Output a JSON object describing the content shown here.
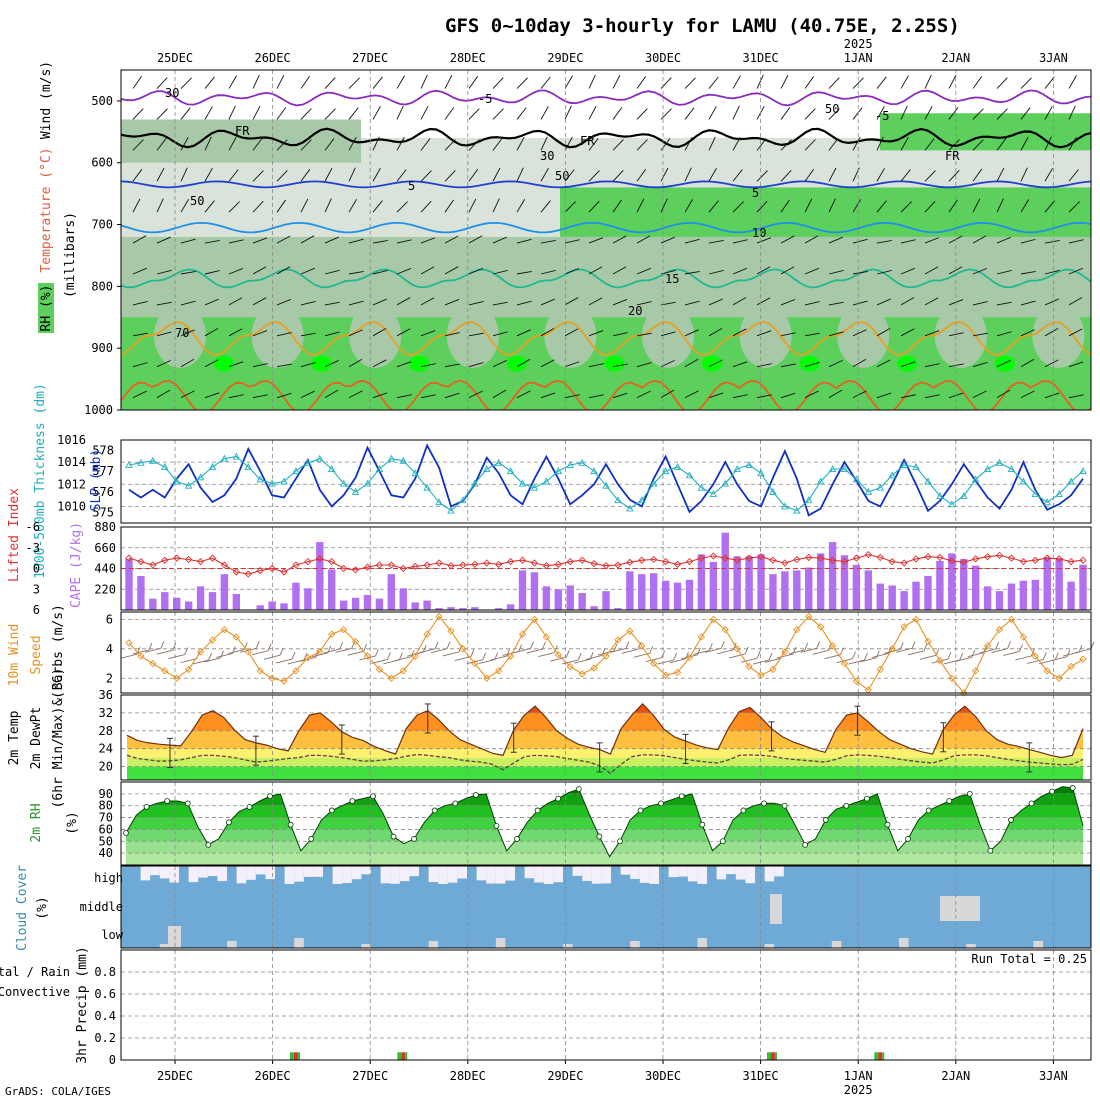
{
  "header": {
    "title": "GFS 0~10day 3-hourly for LAMU (40.75E, 2.25S)",
    "footer": "GrADS: COLA/IGES"
  },
  "colors": {
    "rh_light": "#d9e3d9",
    "rh_mid": "#a8c9a8",
    "rh_green": "#5ccf5c",
    "rh_bright": "#00ff00",
    "t_minus5": "#8a2bbf",
    "t_fr": "#000000",
    "t_5": "#2040d0",
    "t_10": "#1e90e8",
    "t_15": "#20b890",
    "t_20": "#e8a020",
    "t_25": "#e86020",
    "slp": "#1030c0",
    "thick": "#20b0c0",
    "li": "#e03030",
    "cape": "#b070f0",
    "wind_speed": "#e89020",
    "wind_barb": "#8a7060",
    "cloud": "#6fa9d6",
    "cloud_clear": "#f4f0fa"
  },
  "chart_data": [
    {
      "type": "heatmap",
      "name": "upper-air",
      "x_labels": [
        "25DEC",
        "26DEC",
        "27DEC",
        "28DEC",
        "29DEC",
        "30DEC",
        "31DEC",
        "1JAN",
        "2JAN",
        "3JAN"
      ],
      "year_label": "2025",
      "ylabel": "(millibars)",
      "ylabel_parts": [
        "RH (%)",
        "Temperature (°C)",
        "Wind (m/s)"
      ],
      "ylim": [
        1000,
        450
      ],
      "yticks": [
        500,
        600,
        700,
        800,
        900,
        1000
      ],
      "contour_labels": [
        "-5",
        "FR",
        "5",
        "10",
        "15",
        "20",
        "30",
        "50",
        "70"
      ]
    },
    {
      "type": "line",
      "name": "slp-thickness",
      "ylabel_left": "1000-500mb Thickness (dm)",
      "ylabel_right": "SLP (mb)",
      "left_ticks": [
        575,
        576,
        577,
        578
      ],
      "right_ticks": [
        1010,
        1012,
        1014,
        1016
      ],
      "left_range": [
        574.5,
        578.5
      ],
      "right_range": [
        1008.5,
        1016
      ],
      "series": [
        {
          "name": "SLP",
          "values": [
            1011.5,
            1010.8,
            1011.5,
            1010.8,
            1012.5,
            1013.8,
            1011.7,
            1010.4,
            1011.0,
            1012.5,
            1015.2,
            1013.2,
            1011.0,
            1010.8,
            1012.5,
            1014.2,
            1011.5,
            1010.0,
            1011.0,
            1012.6,
            1015.3,
            1013.2,
            1011.0,
            1010.8,
            1012.5,
            1015.5,
            1013.5,
            1010.0,
            1010.5,
            1012.0,
            1014.4,
            1013.0,
            1011.0,
            1010.2,
            1012.5,
            1014.5,
            1012.5,
            1010.2,
            1011.0,
            1012.0,
            1013.8,
            1012.0,
            1010.6,
            1010.0,
            1012.5,
            1014.5,
            1012.0,
            1009.5,
            1010.5,
            1012.0,
            1014.0,
            1012.0,
            1010.5,
            1010.0,
            1012.6,
            1015.0,
            1012.5,
            1009.2,
            1009.8,
            1012.0,
            1014.0,
            1012.3,
            1010.5,
            1010.0,
            1012.0,
            1014.2,
            1012.0,
            1009.6,
            1010.5,
            1012.0,
            1013.8,
            1012.3,
            1010.8,
            1009.8,
            1011.5,
            1014.0,
            1011.5,
            1009.7,
            1010.2,
            1011.0,
            1012.5
          ]
        },
        {
          "name": "Thickness",
          "values": [
            577.3,
            577.4,
            577.5,
            577.2,
            576.5,
            576.3,
            576.7,
            577.2,
            577.6,
            577.7,
            577.2,
            576.6,
            576.4,
            576.5,
            577.0,
            577.4,
            577.6,
            577.1,
            576.4,
            576.0,
            576.4,
            577.1,
            577.6,
            577.5,
            576.9,
            576.2,
            575.5,
            575.1,
            575.6,
            576.4,
            577.1,
            577.4,
            577.0,
            576.4,
            576.2,
            576.5,
            577.0,
            577.3,
            577.4,
            577.0,
            576.3,
            575.6,
            575.2,
            575.6,
            576.4,
            577.0,
            577.2,
            576.8,
            576.2,
            575.9,
            576.4,
            577.1,
            577.3,
            576.9,
            576.0,
            575.3,
            575.1,
            575.6,
            576.5,
            577.1,
            577.1,
            576.6,
            576.0,
            576.2,
            576.8,
            577.3,
            577.2,
            576.5,
            575.8,
            575.4,
            575.8,
            576.6,
            577.1,
            577.4,
            577.1,
            576.5,
            575.9,
            575.5,
            575.9,
            576.5,
            577.0
          ]
        }
      ]
    },
    {
      "type": "bar",
      "name": "cape-li",
      "ylabel_left": "Lifted Index",
      "ylabel_right": "CAPE (J/kg)",
      "left_ticks": [
        "6",
        "3",
        "0",
        "-3",
        "-6"
      ],
      "right_ticks": [
        220,
        440,
        660,
        880
      ],
      "cape_range": [
        0,
        880
      ],
      "li_range": [
        6,
        -6
      ],
      "series": [
        {
          "name": "CAPE",
          "values": [
            540,
            360,
            120,
            190,
            130,
            90,
            250,
            190,
            380,
            170,
            0,
            50,
            90,
            70,
            290,
            230,
            720,
            430,
            100,
            130,
            160,
            120,
            380,
            230,
            80,
            100,
            20,
            30,
            20,
            30,
            0,
            20,
            60,
            420,
            400,
            250,
            220,
            260,
            180,
            40,
            200,
            20,
            410,
            380,
            390,
            310,
            290,
            320,
            590,
            510,
            820,
            570,
            570,
            590,
            380,
            410,
            420,
            450,
            600,
            720,
            580,
            480,
            420,
            280,
            260,
            200,
            300,
            360,
            520,
            600,
            540,
            470,
            250,
            200,
            280,
            310,
            320,
            560,
            550,
            300,
            480
          ]
        },
        {
          "name": "Lifted Index",
          "values": [
            -1.5,
            -1.0,
            -0.5,
            -1.2,
            -1.5,
            -1.3,
            -1.0,
            -1.5,
            -0.5,
            0.5,
            0.8,
            0.3,
            0.0,
            0.5,
            -0.5,
            -1.0,
            -1.4,
            -1.0,
            0.0,
            0.2,
            -0.2,
            -0.5,
            -0.5,
            0.0,
            -0.3,
            -0.5,
            -0.8,
            -0.4,
            -0.5,
            -0.6,
            -0.8,
            -0.6,
            -1.0,
            -1.2,
            -0.8,
            -0.4,
            -0.6,
            -1.0,
            -1.2,
            -0.7,
            -0.4,
            -0.5,
            -0.9,
            -1.2,
            -1.3,
            -1.0,
            -0.6,
            -1.0,
            -1.5,
            -1.8,
            -1.5,
            -1.2,
            -1.5,
            -1.7,
            -1.2,
            -0.8,
            -1.3,
            -1.6,
            -1.5,
            -1.2,
            -1.0,
            -1.5,
            -2.0,
            -1.6,
            -1.0,
            -0.8,
            -1.4,
            -1.7,
            -1.6,
            -1.1,
            -0.9,
            -1.4,
            -1.7,
            -1.9,
            -1.5,
            -1.0,
            -1.2,
            -1.5,
            -1.4,
            -1.0,
            -1.2
          ]
        }
      ]
    },
    {
      "type": "line",
      "name": "wind10m",
      "ylabel": "10m Wind Speed & Barbs (m/s)",
      "ylabel_parts": [
        "10m Wind",
        "Speed",
        "& Barbs",
        "(m/s)"
      ],
      "yticks": [
        2,
        4,
        6
      ],
      "ylim": [
        1,
        6.5
      ],
      "series": [
        {
          "name": "Speed",
          "values": [
            4.4,
            3.5,
            3.0,
            2.5,
            2.0,
            2.6,
            3.8,
            4.6,
            5.3,
            4.8,
            3.8,
            2.5,
            2.0,
            1.8,
            2.5,
            3.4,
            3.8,
            5.0,
            5.3,
            4.5,
            3.5,
            2.6,
            2.0,
            2.5,
            3.5,
            5.0,
            6.2,
            5.2,
            4.0,
            3.0,
            2.0,
            2.5,
            3.5,
            5.0,
            6.0,
            4.8,
            3.6,
            2.8,
            2.3,
            2.7,
            3.5,
            4.6,
            5.2,
            4.2,
            3.0,
            2.2,
            2.4,
            3.4,
            4.8,
            6.0,
            5.3,
            4.0,
            2.8,
            2.2,
            2.6,
            3.8,
            5.3,
            6.2,
            5.5,
            4.2,
            3.0,
            1.8,
            1.2,
            2.6,
            4.0,
            5.5,
            6.0,
            4.5,
            3.2,
            2.0,
            1.0,
            2.5,
            4.2,
            5.3,
            6.0,
            4.8,
            3.5,
            2.5,
            2.0,
            2.8,
            3.3
          ]
        }
      ]
    },
    {
      "type": "area",
      "name": "temp2m",
      "ylabel_parts": [
        "2m Temp",
        "2m DewPt",
        "(6hr Min/Max) (°C)"
      ],
      "yticks": [
        20,
        24,
        28,
        32,
        36
      ],
      "ylim": [
        17,
        36
      ],
      "series": [
        {
          "name": "Temp",
          "values": [
            27.0,
            25.8,
            25.3,
            25.0,
            24.8,
            24.6,
            27.8,
            31.5,
            32.5,
            31.0,
            28.2,
            26.0,
            25.3,
            24.8,
            24.0,
            23.5,
            28.0,
            31.5,
            32.0,
            30.0,
            27.8,
            26.5,
            25.8,
            24.5,
            23.6,
            22.8,
            28.5,
            31.5,
            32.5,
            30.5,
            28.0,
            26.0,
            25.0,
            24.0,
            23.0,
            22.5,
            28.2,
            31.5,
            33.5,
            31.0,
            28.0,
            26.3,
            25.0,
            24.3,
            23.8,
            22.8,
            28.5,
            31.5,
            34.0,
            31.5,
            28.3,
            26.6,
            25.7,
            24.8,
            24.2,
            23.8,
            28.6,
            32.3,
            33.2,
            31.0,
            28.5,
            26.7,
            25.5,
            24.7,
            23.8,
            23.2,
            28.3,
            31.5,
            32.0,
            30.0,
            27.8,
            26.0,
            25.0,
            24.0,
            23.3,
            22.8,
            28.3,
            31.5,
            33.5,
            31.2,
            28.0,
            26.0,
            25.0,
            24.5,
            23.8,
            23.2,
            22.5,
            22.0,
            22.5,
            28.5
          ]
        },
        {
          "name": "DewPt",
          "values": [
            22.5,
            21.8,
            21.5,
            21.2,
            21.3,
            21.5,
            22.0,
            22.5,
            22.5,
            22.3,
            22.0,
            21.5,
            21.0,
            21.2,
            21.5,
            21.8,
            22.0,
            22.5,
            22.5,
            22.3,
            22.0,
            21.6,
            21.2,
            21.3,
            21.5,
            21.8,
            22.3,
            22.7,
            22.5,
            22.2,
            22.0,
            21.5,
            21.2,
            21.0,
            20.5,
            19.3,
            20.8,
            22.2,
            22.5,
            22.4,
            22.2,
            21.8,
            21.4,
            21.0,
            20.2,
            18.5,
            20.5,
            22.2,
            22.6,
            22.6,
            22.4,
            22.0,
            21.6,
            21.3,
            21.0,
            20.8,
            21.5,
            22.5,
            22.6,
            22.5,
            22.3,
            21.9,
            21.6,
            21.4,
            21.2,
            21.0,
            21.6,
            22.4,
            22.6,
            22.5,
            22.3,
            22.0,
            21.6,
            21.3,
            21.0,
            20.8,
            21.5,
            22.4,
            22.6,
            22.6,
            22.4,
            22.0,
            21.6,
            21.3,
            21.0,
            20.8,
            20.6,
            20.4,
            20.5,
            21.6
          ]
        }
      ]
    },
    {
      "type": "area",
      "name": "rh2m",
      "ylabel": "2m RH (%)",
      "yticks": [
        40,
        50,
        60,
        70,
        80,
        90
      ],
      "ylim": [
        30,
        100
      ],
      "series": [
        {
          "name": "RH",
          "values": [
            57,
            72,
            79,
            82,
            84,
            84,
            82,
            62,
            47,
            52,
            66,
            75,
            79,
            84,
            88,
            90,
            64,
            42,
            52,
            68,
            76,
            80,
            84,
            86,
            88,
            73,
            54,
            48,
            52,
            66,
            76,
            80,
            82,
            86,
            89,
            90,
            63,
            42,
            52,
            66,
            76,
            82,
            86,
            91,
            94,
            73,
            54,
            37,
            50,
            68,
            76,
            80,
            82,
            85,
            88,
            90,
            64,
            42,
            50,
            68,
            76,
            80,
            82,
            82,
            80,
            64,
            47,
            52,
            68,
            77,
            80,
            83,
            86,
            90,
            64,
            42,
            52,
            68,
            76,
            80,
            84,
            88,
            90,
            64,
            42,
            50,
            68,
            76,
            82,
            88,
            92,
            96,
            95,
            63
          ]
        }
      ]
    },
    {
      "type": "area",
      "name": "cloud",
      "ylabel": "Cloud Cover (%)",
      "levels": [
        "high",
        "middle",
        "low"
      ]
    },
    {
      "type": "bar",
      "name": "precip",
      "ylabel_parts": [
        "Total / Rain",
        "Convective"
      ],
      "ylabel": "3hr Precip (mm)",
      "yticks": [
        "0",
        "0.2",
        "0.4",
        "0.6",
        "0.8"
      ],
      "ylim": [
        0,
        1.0
      ],
      "run_total": "Run Total = 0.25",
      "bars": [
        {
          "i": 14,
          "v": 0.07
        },
        {
          "i": 23,
          "v": 0.07
        },
        {
          "i": 54,
          "v": 0.07
        },
        {
          "i": 63,
          "v": 0.07
        }
      ]
    }
  ]
}
